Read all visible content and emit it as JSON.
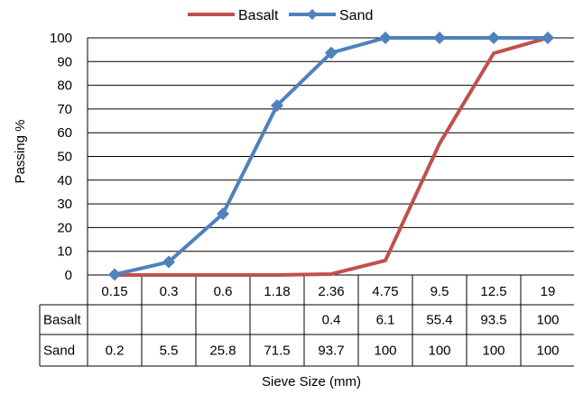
{
  "chart_data": {
    "type": "line",
    "title": "",
    "xlabel": "Sieve Size (mm)",
    "ylabel": "Passing %",
    "categories": [
      "0.15",
      "0.3",
      "0.6",
      "1.18",
      "2.36",
      "4.75",
      "9.5",
      "12.5",
      "19"
    ],
    "ylim": [
      0,
      100
    ],
    "yticks": [
      0,
      10,
      20,
      30,
      40,
      50,
      60,
      70,
      80,
      90,
      100
    ],
    "grid": "horizontal",
    "legend": "top-center",
    "series": [
      {
        "name": "Basalt",
        "color": "#C0504D",
        "marker": "none",
        "values": [
          0,
          0,
          0,
          0,
          0.4,
          6.1,
          55.4,
          93.5,
          100
        ],
        "table_values": [
          "",
          "",
          "",
          "",
          "0.4",
          "6.1",
          "55.4",
          "93.5",
          "100"
        ]
      },
      {
        "name": "Sand",
        "color": "#4F81BD",
        "marker": "diamond",
        "values": [
          0.2,
          5.5,
          25.8,
          71.5,
          93.7,
          100,
          100,
          100,
          100
        ],
        "table_values": [
          "0.2",
          "5.5",
          "25.8",
          "71.5",
          "93.7",
          "100",
          "100",
          "100",
          "100"
        ]
      }
    ]
  }
}
